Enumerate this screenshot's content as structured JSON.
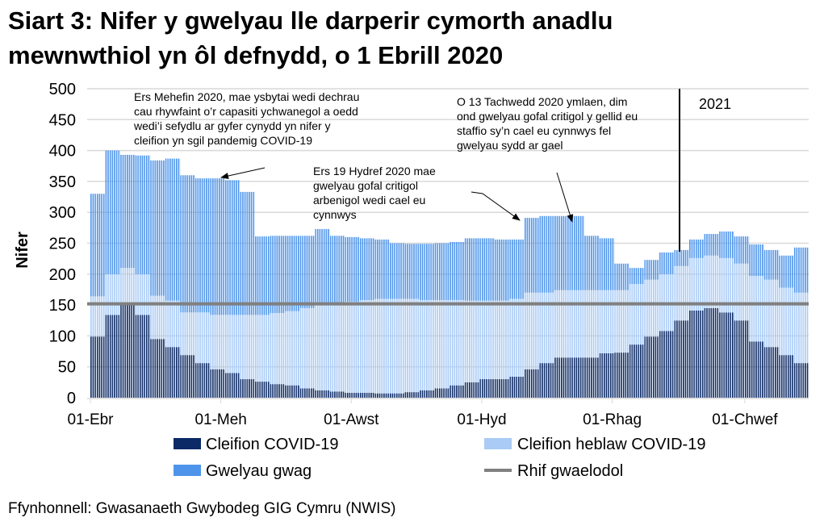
{
  "title_line1": "Siart 3: Nifer y gwelyau lle darperir cymorth anadlu",
  "title_line2": "mewnwthiol yn ôl defnydd, o 1 Ebrill 2020",
  "source": "Ffynhonnell: Gwasanaeth Gwybodeg GIG Cymru (NWIS)",
  "chart_data": {
    "type": "bar",
    "stacked": true,
    "ylabel": "Nifer",
    "ylim": [
      0,
      500
    ],
    "yticks": [
      0,
      50,
      100,
      150,
      200,
      250,
      300,
      350,
      400,
      450,
      500
    ],
    "xtick_labels": [
      "01-Ebr",
      "01-Meh",
      "01-Awst",
      "01-Hyd",
      "01-Rhag",
      "01-Chwef"
    ],
    "grid": true,
    "legend_position": "bottom",
    "colors": {
      "covid": "#0b2a66",
      "non_covid": "#a9cbf6",
      "empty": "#4d94ea",
      "baseline": "#808080"
    },
    "dates": [
      "2020-04-01",
      "2020-04-08",
      "2020-04-15",
      "2020-04-22",
      "2020-04-29",
      "2020-05-06",
      "2020-05-13",
      "2020-05-20",
      "2020-05-27",
      "2020-06-03",
      "2020-06-10",
      "2020-06-17",
      "2020-06-24",
      "2020-07-01",
      "2020-07-08",
      "2020-07-15",
      "2020-07-22",
      "2020-07-29",
      "2020-08-05",
      "2020-08-12",
      "2020-08-19",
      "2020-08-26",
      "2020-09-02",
      "2020-09-09",
      "2020-09-16",
      "2020-09-23",
      "2020-09-30",
      "2020-10-07",
      "2020-10-14",
      "2020-10-21",
      "2020-10-28",
      "2020-11-04",
      "2020-11-11",
      "2020-11-18",
      "2020-11-25",
      "2020-12-02",
      "2020-12-09",
      "2020-12-16",
      "2020-12-23",
      "2020-12-30",
      "2021-01-06",
      "2021-01-13",
      "2021-01-20",
      "2021-01-27",
      "2021-02-03",
      "2021-02-10",
      "2021-02-17",
      "2021-02-24"
    ],
    "series": [
      {
        "name": "Cleifion COVID-19",
        "key": "covid",
        "values": [
          99,
          134,
          150,
          134,
          95,
          82,
          69,
          56,
          46,
          40,
          30,
          26,
          22,
          20,
          15,
          12,
          10,
          8,
          8,
          7,
          7,
          9,
          12,
          15,
          20,
          25,
          30,
          30,
          34,
          46,
          56,
          65,
          65,
          65,
          72,
          73,
          86,
          99,
          108,
          125,
          141,
          145,
          138,
          125,
          91,
          82,
          69,
          56
        ]
      },
      {
        "name": "Cleifion heblaw COVID-19",
        "key": "non_covid",
        "values": [
          65,
          66,
          60,
          66,
          70,
          75,
          69,
          82,
          88,
          94,
          104,
          108,
          115,
          120,
          130,
          138,
          142,
          147,
          150,
          153,
          153,
          151,
          146,
          143,
          138,
          132,
          127,
          127,
          126,
          124,
          114,
          109,
          109,
          109,
          102,
          101,
          98,
          92,
          92,
          88,
          85,
          85,
          88,
          92,
          106,
          109,
          109,
          114
        ]
      },
      {
        "name": "Gwelyau gwag",
        "key": "empty",
        "values": [
          166,
          200,
          183,
          192,
          219,
          230,
          222,
          217,
          221,
          218,
          199,
          127,
          125,
          122,
          117,
          123,
          110,
          105,
          100,
          96,
          90,
          89,
          91,
          92,
          94,
          101,
          101,
          99,
          96,
          121,
          124,
          120,
          120,
          88,
          84,
          43,
          26,
          32,
          35,
          26,
          30,
          35,
          43,
          44,
          51,
          48,
          52,
          73
        ]
      }
    ],
    "baseline": {
      "name": "Rhif gwaelodol",
      "value": 152
    },
    "marker_2021_label": "2021",
    "annotations": [
      {
        "lines": [
          "Ers Mehefin 2020, mae ysbytai wedi dechrau",
          "cau rhywfaint o’r capasiti ychwanegol a oedd",
          "wedi’i sefydlu ar gyfer cynydd yn nifer y",
          "cleifion yn sgil pandemig COVID-19"
        ]
      },
      {
        "lines": [
          "Ers 19 Hydref 2020 mae",
          "gwelyau gofal critigol",
          "arbenigol wedi cael eu",
          "cynnwys"
        ]
      },
      {
        "lines": [
          "O 13 Tachwedd 2020 ymlaen, dim",
          "ond gwelyau gofal critigol y gellid eu",
          "staffio sy’n cael eu cynnwys fel",
          "gwelyau sydd ar gael"
        ]
      }
    ]
  }
}
